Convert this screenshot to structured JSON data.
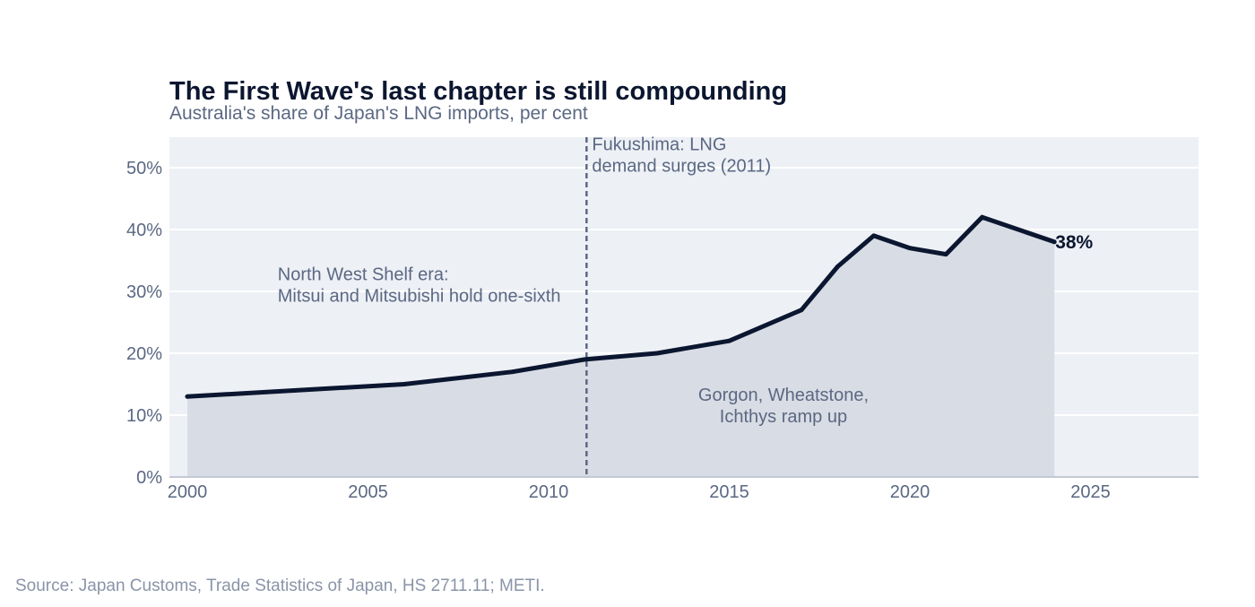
{
  "chart_data": {
    "type": "area",
    "title": "The First Wave's last chapter is still compounding",
    "subtitle": "Australia's share of Japan's LNG imports, per cent",
    "xlabel": "",
    "ylabel": "",
    "xlim": [
      2000,
      2028
    ],
    "ylim": [
      0,
      55
    ],
    "x_ticks": [
      2000,
      2005,
      2010,
      2015,
      2020,
      2025
    ],
    "y_ticks": [
      0,
      10,
      20,
      30,
      40,
      50
    ],
    "y_tick_suffix": "%",
    "grid": true,
    "legend": "none",
    "series": [
      {
        "x": [
          2000,
          2003,
          2006,
          2009,
          2011,
          2013,
          2015,
          2017,
          2018,
          2019,
          2020,
          2021,
          2022,
          2024
        ],
        "y": [
          13,
          14,
          15,
          17,
          19,
          20,
          22,
          27,
          34,
          39,
          37,
          36,
          42,
          38
        ]
      }
    ],
    "end_label": "38%",
    "event_line": {
      "x": 2011.05
    },
    "annotations": [
      {
        "id": "fukushima",
        "lines": [
          "Fukushima: LNG",
          "demand surges (2011)"
        ],
        "x": 2011.2,
        "y": 52.8,
        "anchor": "start"
      },
      {
        "id": "nws",
        "lines": [
          "North West Shelf era:",
          "Mitsui and Mitsubishi hold one-sixth"
        ],
        "x": 2002.5,
        "y": 31.8,
        "anchor": "start"
      },
      {
        "id": "gorgon",
        "lines": [
          "Gorgon, Wheatstone,",
          "Ichthys ramp up"
        ],
        "x": 2016.5,
        "y": 12.3,
        "anchor": "middle"
      }
    ],
    "source": "Source: Japan Customs, Trade Statistics of Japan, HS 2711.11; METI.",
    "colors": {
      "line": "#0b1630",
      "area": "#d8dce4",
      "plot_bg": "#edf0f5",
      "grid": "#ffffff",
      "event_line": "#5b6883",
      "text": "#0b1630",
      "muted": "#5b6883",
      "source": "#8a94a8"
    }
  }
}
